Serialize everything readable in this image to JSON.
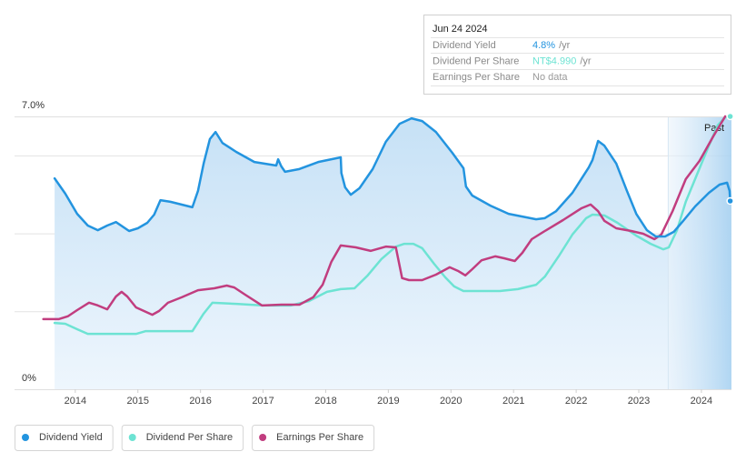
{
  "chart_data": {
    "type": "line",
    "xlim": [
      2013.03,
      2024.48
    ],
    "xticks": [
      2014,
      2015,
      2016,
      2017,
      2018,
      2019,
      2020,
      2021,
      2022,
      2023,
      2024
    ],
    "ylim": [
      0,
      7
    ],
    "yticks": [
      {
        "value": 0,
        "label": "0%"
      },
      {
        "value": 7,
        "label": "7.0%"
      }
    ],
    "gridlines": [
      2,
      4,
      6,
      7
    ],
    "past_region": {
      "label": "Past",
      "x": [
        2023.47,
        2024.48
      ]
    },
    "series": [
      {
        "name": "Dividend Yield",
        "color": "#2394df",
        "area": true,
        "x": [
          2013.67,
          2013.84,
          2014.03,
          2014.2,
          2014.36,
          2014.51,
          2014.65,
          2014.86,
          2015.0,
          2015.15,
          2015.26,
          2015.36,
          2015.52,
          2015.87,
          2015.96,
          2016.05,
          2016.15,
          2016.24,
          2016.35,
          2016.57,
          2016.86,
          2017.21,
          2017.24,
          2017.29,
          2017.35,
          2017.58,
          2017.88,
          2018.24,
          2018.25,
          2018.31,
          2018.4,
          2018.54,
          2018.75,
          2018.96,
          2019.18,
          2019.37,
          2019.54,
          2019.76,
          2020.02,
          2020.2,
          2020.24,
          2020.34,
          2020.63,
          2020.92,
          2021.36,
          2021.5,
          2021.68,
          2021.94,
          2022.2,
          2022.26,
          2022.35,
          2022.45,
          2022.64,
          2022.81,
          2022.96,
          2023.13,
          2023.27,
          2023.42,
          2023.56,
          2023.71,
          2023.9,
          2024.12,
          2024.29,
          2024.41,
          2024.45,
          2024.46
        ],
        "values": [
          5.41,
          5.02,
          4.5,
          4.2,
          4.08,
          4.2,
          4.29,
          4.06,
          4.13,
          4.27,
          4.48,
          4.85,
          4.81,
          4.67,
          5.09,
          5.79,
          6.42,
          6.6,
          6.32,
          6.09,
          5.83,
          5.74,
          5.9,
          5.72,
          5.58,
          5.65,
          5.83,
          5.95,
          5.55,
          5.18,
          4.99,
          5.16,
          5.65,
          6.35,
          6.81,
          6.95,
          6.88,
          6.6,
          6.07,
          5.67,
          5.2,
          4.97,
          4.71,
          4.5,
          4.36,
          4.39,
          4.57,
          5.04,
          5.69,
          5.88,
          6.37,
          6.25,
          5.79,
          5.09,
          4.5,
          4.08,
          3.92,
          3.92,
          4.04,
          4.32,
          4.69,
          5.04,
          5.25,
          5.3,
          5.09,
          4.83
        ]
      },
      {
        "name": "Dividend Per Share",
        "color": "#6de3d3",
        "x": [
          2013.67,
          2013.84,
          2014.03,
          2014.2,
          2014.97,
          2015.12,
          2015.87,
          2016.05,
          2016.19,
          2016.57,
          2017.0,
          2017.44,
          2017.73,
          2018.02,
          2018.24,
          2018.46,
          2018.67,
          2018.89,
          2019.12,
          2019.25,
          2019.4,
          2019.54,
          2019.73,
          2019.91,
          2020.05,
          2020.2,
          2020.78,
          2021.07,
          2021.36,
          2021.5,
          2021.72,
          2021.94,
          2022.16,
          2022.26,
          2022.45,
          2022.66,
          2022.96,
          2023.19,
          2023.39,
          2023.48,
          2023.61,
          2023.75,
          2023.94,
          2024.12,
          2024.26,
          2024.38,
          2024.46
        ],
        "values": [
          1.7,
          1.68,
          1.54,
          1.42,
          1.42,
          1.49,
          1.49,
          1.94,
          2.22,
          2.19,
          2.15,
          2.15,
          2.26,
          2.5,
          2.57,
          2.59,
          2.92,
          3.34,
          3.66,
          3.73,
          3.73,
          3.62,
          3.22,
          2.87,
          2.64,
          2.52,
          2.52,
          2.57,
          2.68,
          2.89,
          3.41,
          3.97,
          4.39,
          4.48,
          4.46,
          4.27,
          3.94,
          3.73,
          3.59,
          3.64,
          4.08,
          4.81,
          5.55,
          6.25,
          6.77,
          6.98,
          7.0
        ]
      },
      {
        "name": "Earnings Per Share",
        "color": "#c13d7f",
        "x": [
          2013.49,
          2013.74,
          2013.88,
          2014.03,
          2014.22,
          2014.36,
          2014.51,
          2014.65,
          2014.74,
          2014.83,
          2014.97,
          2015.23,
          2015.34,
          2015.48,
          2015.7,
          2015.96,
          2016.22,
          2016.42,
          2016.54,
          2016.71,
          2016.98,
          2017.29,
          2017.58,
          2017.8,
          2017.95,
          2018.09,
          2018.24,
          2018.48,
          2018.72,
          2018.96,
          2019.12,
          2019.22,
          2019.33,
          2019.54,
          2019.76,
          2019.98,
          2020.12,
          2020.23,
          2020.34,
          2020.49,
          2020.71,
          2020.85,
          2021.02,
          2021.14,
          2021.29,
          2021.5,
          2021.79,
          2022.08,
          2022.23,
          2022.35,
          2022.45,
          2022.64,
          2022.88,
          2023.07,
          2023.25,
          2023.36,
          2023.54,
          2023.75,
          2023.97,
          2024.19,
          2024.38
        ],
        "values": [
          1.8,
          1.8,
          1.87,
          2.03,
          2.22,
          2.15,
          2.05,
          2.38,
          2.5,
          2.38,
          2.1,
          1.91,
          2.01,
          2.22,
          2.36,
          2.54,
          2.59,
          2.66,
          2.61,
          2.43,
          2.15,
          2.17,
          2.17,
          2.36,
          2.68,
          3.27,
          3.69,
          3.64,
          3.55,
          3.66,
          3.64,
          2.85,
          2.8,
          2.8,
          2.94,
          3.13,
          3.03,
          2.92,
          3.08,
          3.31,
          3.41,
          3.36,
          3.29,
          3.5,
          3.85,
          4.06,
          4.34,
          4.64,
          4.74,
          4.57,
          4.32,
          4.13,
          4.06,
          3.99,
          3.85,
          3.97,
          4.57,
          5.39,
          5.86,
          6.49,
          7.0
        ]
      }
    ],
    "tooltip": {
      "date": "Jun 24 2024",
      "rows": [
        {
          "label": "Dividend Yield",
          "value": "4.8%",
          "unit": "/yr"
        },
        {
          "label": "Dividend Per Share",
          "value": "NT$4.990",
          "unit": "/yr"
        },
        {
          "label": "Earnings Per Share",
          "value": "No data"
        }
      ]
    }
  }
}
